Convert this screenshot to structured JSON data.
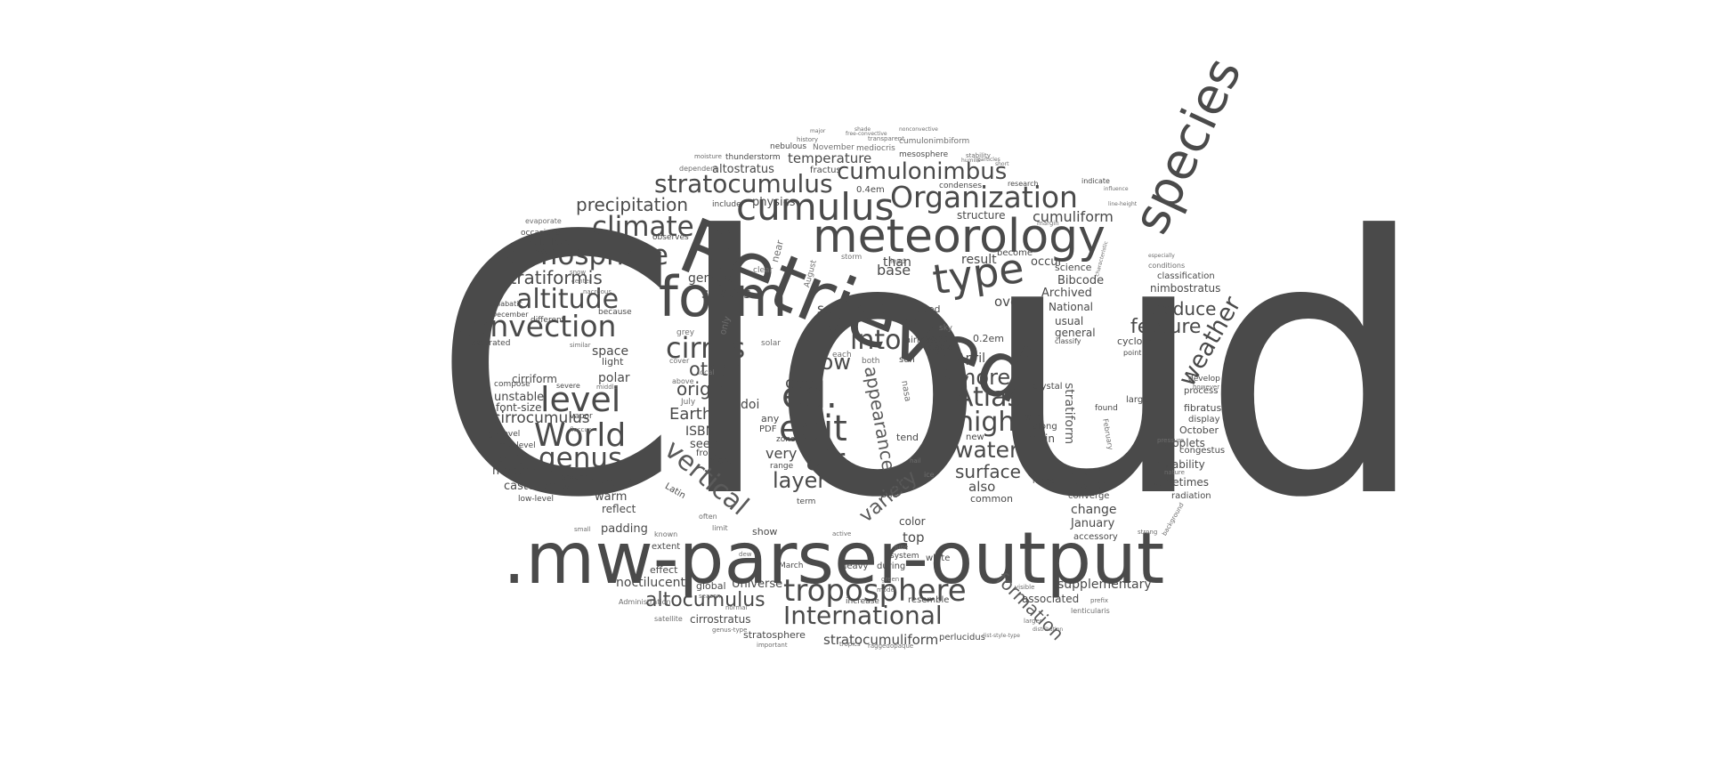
{
  "words": {
    "cloud": "Cloud",
    "parser": ".mw-parser-output",
    "retrieved": "Retrieved",
    "meteorology": "meteorology",
    "species": "species",
    "form": "form",
    "cumulus": "cumulus",
    "organization": "Organization",
    "stratocumulus": "stratocumulus",
    "cumulonimbus": "cumulonimbus",
    "atmosphere": "atmosphere",
    "climate": "climate",
    "precipitation": "precipitation",
    "altitude": "altitude",
    "convection": "convection",
    "level": "level",
    "world": "World",
    "genus": "genus",
    "type": "type",
    "edit": "edit",
    "ed": "ed.",
    "cirrus": "cirrus",
    "troposphere": "troposphere",
    "international": "International",
    "atlas": "Atlas",
    "high": "high",
    "water": "water",
    "surface": "surface",
    "vertical": "vertical",
    "appearance": "appearance",
    "air": "air",
    "layer": "layer",
    "weather": "weather",
    "feature": "feature",
    "produce": "produce",
    "formation": "formation",
    "altocumulus": "altocumulus",
    "stratiformis": "stratiformis",
    "variety": "variety",
    "into": "into",
    "low": "low",
    "more": "more",
    "stratiform": "stratiform",
    "cirrocumulus": "cirrocumulus",
    "supplementary": "supplementary",
    "stratocumuliform": "stratocumuliform",
    "cumuliform": "cumuliform",
    "temperature": "temperature",
    "altostratus": "altostratus",
    "stratus": "stratus",
    "other": "other",
    "origin": "origin",
    "earth": "Earth",
    "cool": "cool",
    "noctilucent": "noctilucent",
    "castellanus": "castellanus",
    "moderate": "moderate",
    "unstable": "unstable",
    "font_size": "font-size",
    "cirriform": "cirriform",
    "polar": "polar",
    "space": "space",
    "mostly": "mostly",
    "warm": "warm",
    "padding": "padding",
    "reflect": "reflect",
    "physics": "physics",
    "genera": "genera",
    "see": "see",
    "base": "base",
    "result": "result",
    "over": "over",
    "archived": "Archived",
    "national": "National",
    "usual": "usual",
    "general": "general",
    "bibcode": "Bibcode",
    "april": "April",
    "also": "also",
    "tower": "tower",
    "change": "change",
    "january": "January",
    "cause": "cause",
    "sometimes": "sometimes",
    "instability": "instability",
    "droplets": "droplets",
    "october": "October",
    "fibratus": "fibratus",
    "nimbostratus": "nimbostratus",
    "classification": "classification",
    "cyclone": "cyclone",
    "isbn": "ISBN",
    "doi": "doi",
    "very": "very",
    "seen": "seen",
    "most": "most",
    "top": "top",
    "color": "color",
    "lift": "lift",
    "universe": "Universe",
    "cirrostratus": "cirrostratus",
    "associated": "associated",
    "stratosphere": "stratosphere",
    "effect": "effect",
    "global": "global",
    "extent": "extent",
    "show": "show",
    "common": "common",
    "main": "main",
    "rain": "rain",
    "occur": "occur",
    "science": "science",
    "structure": "structure",
    "thunderstorm": "thunderstorm",
    "fractus": "fractus",
    "mesosphere": "mesosphere",
    "nebulous": "nebulous",
    "fog": "fog",
    "airmass": "airmass",
    "wind": "wind",
    "than": "than",
    "used": "used",
    "accessory": "accessory",
    "converge": "converge",
    "radiation": "radiation",
    "process": "process",
    "combine": "combine",
    "display": "display",
    "congestus": "congestus",
    "develop": "develop",
    "identify": "identify",
    "high_level": "high-level",
    "low_level": "low-level",
    "mid_level": "mid-level",
    "multi_level": "multi-level",
    "occasional": "occasional",
    "observes": "observes",
    "include": "include",
    "light": "light",
    "vapor": "vapor",
    "ground": "ground",
    "saturated": "saturated",
    "different": "different",
    "because": "because",
    "december": "December",
    "adiabatic": "adiabatic",
    "severe": "severe",
    "compose": "compose",
    "0_4em": "0.4em",
    "0_2em": "0.2em",
    "stable": "stable",
    "condenses": "condenses",
    "become": "become",
    "crystal": "crystal",
    "along": "along",
    "new": "new",
    "higher": "higher",
    "tend": "tend",
    "during": "during",
    "white": "white",
    "resemble": "resemble",
    "perlucidus": "perlucidus",
    "increase": "increase",
    "heavy": "heavy",
    "system": "system",
    "march": "March",
    "latin": "Latin",
    "front": "front",
    "zone": "zone",
    "pdf": "PDF",
    "range": "range",
    "any": "any",
    "one": "one",
    "term": "term",
    "large": "large",
    "found": "found",
    "classify": "classify",
    "point": "point",
    "indicate": "indicate",
    "research": "research",
    "nasa": "nasa",
    "sun": "sun",
    "grey": "grey",
    "only": "only",
    "near": "near",
    "clear": "clear",
    "august": "August",
    "storm": "storm",
    "sky": "sky",
    "lead": "lead",
    "each": "each",
    "solar": "solar",
    "both": "both",
    "july": "July",
    "above": "above",
    "cover": "cover",
    "local": "local",
    "november": "November",
    "mediocris": "mediocris",
    "cumulonimbiform": "cumulonimbiform",
    "dependent": "dependent",
    "evaporate": "evaporate",
    "february": "February",
    "lenticularis": "lenticularis",
    "satellite": "satellite",
    "administration": "Administration",
    "genus_type": "genus-type",
    "prefix": "prefix",
    "moisture": "moisture",
    "stability": "stability",
    "conditions": "conditions",
    "pressure": "pressure",
    "however": "however",
    "point2": "nature",
    "transparent": "transparent",
    "history": "history",
    "small": "small",
    "known": "known",
    "limit": "limit",
    "often": "often",
    "tropics": "tropics",
    "ragged": "ragged",
    "opaque": "opaque",
    "june": "June",
    "green": "green",
    "model": "model",
    "active": "active",
    "season": "season",
    "normal": "normal",
    "important": "important",
    "center": "center",
    "snow": "snow",
    "nacreous": "nacreous",
    "similar": "similar",
    "middle": "middle",
    "floccus": "floccus",
    "strong": "strong",
    "background": "background",
    "visible": "visible",
    "larger": "larger",
    "distribution": "distribution",
    "list_style_type": "list-style-type",
    "especially": "especially",
    "characteristic": "characteristic",
    "influence": "influence",
    "margin": "margin",
    "line_height": "line-height",
    "short": "short",
    "particles": "particles",
    "shade": "shade",
    "nonconvective": "nonconvective",
    "freeconvective": "free-convective",
    "major": "major",
    "humilis": "humilis",
    "ice": "ice",
    "hail": "hail",
    "dew": "dew"
  }
}
